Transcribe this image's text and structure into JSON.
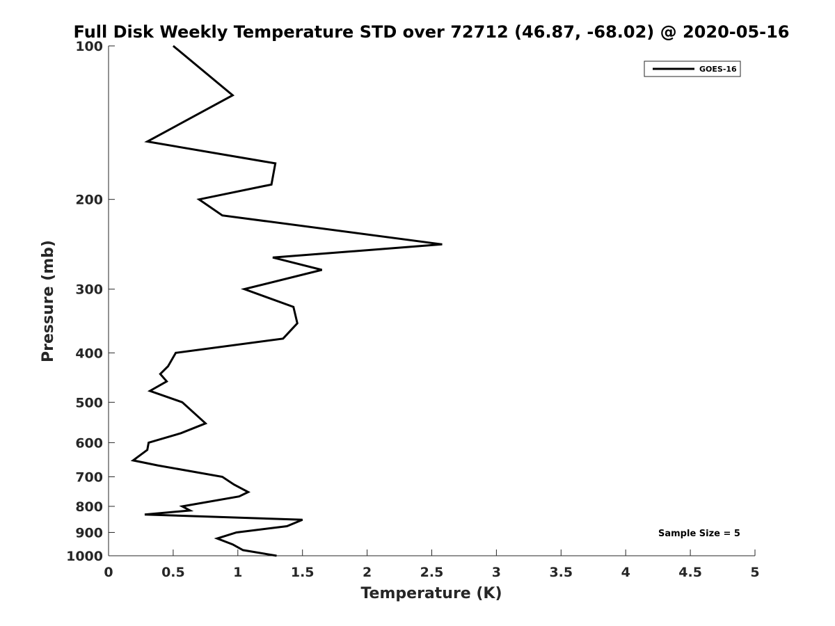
{
  "chart_data": {
    "type": "line",
    "title": "Full Disk Weekly Temperature STD over 72712 (46.87, -68.02) @ 2020-05-16",
    "xlabel": "Temperature (K)",
    "ylabel": "Pressure (mb)",
    "xlim": [
      0,
      5
    ],
    "ylim": [
      100,
      1000
    ],
    "y_scale": "log",
    "y_reversed": true,
    "x_ticks": [
      "0",
      "0.5",
      "1",
      "1.5",
      "2",
      "2.5",
      "3",
      "3.5",
      "4",
      "4.5",
      "5"
    ],
    "y_ticks": [
      "100",
      "200",
      "300",
      "400",
      "500",
      "600",
      "700",
      "800",
      "900",
      "1000"
    ],
    "grid": false,
    "legend_position": "top-right",
    "annotation": "Sample Size = 5",
    "series": [
      {
        "name": "GOES-16",
        "color": "#000000",
        "points": [
          {
            "x": 0.5,
            "y": 100
          },
          {
            "x": 0.96,
            "y": 125
          },
          {
            "x": 0.3,
            "y": 154
          },
          {
            "x": 1.29,
            "y": 170
          },
          {
            "x": 1.26,
            "y": 187
          },
          {
            "x": 0.7,
            "y": 200
          },
          {
            "x": 0.88,
            "y": 215
          },
          {
            "x": 2.58,
            "y": 245
          },
          {
            "x": 1.27,
            "y": 260
          },
          {
            "x": 1.65,
            "y": 275
          },
          {
            "x": 1.05,
            "y": 300
          },
          {
            "x": 1.43,
            "y": 325
          },
          {
            "x": 1.46,
            "y": 350
          },
          {
            "x": 1.35,
            "y": 375
          },
          {
            "x": 0.52,
            "y": 400
          },
          {
            "x": 0.46,
            "y": 425
          },
          {
            "x": 0.4,
            "y": 440
          },
          {
            "x": 0.45,
            "y": 455
          },
          {
            "x": 0.32,
            "y": 475
          },
          {
            "x": 0.57,
            "y": 500
          },
          {
            "x": 0.75,
            "y": 550
          },
          {
            "x": 0.56,
            "y": 575
          },
          {
            "x": 0.31,
            "y": 600
          },
          {
            "x": 0.3,
            "y": 620
          },
          {
            "x": 0.19,
            "y": 650
          },
          {
            "x": 0.38,
            "y": 665
          },
          {
            "x": 0.88,
            "y": 700
          },
          {
            "x": 0.97,
            "y": 725
          },
          {
            "x": 1.08,
            "y": 750
          },
          {
            "x": 1.01,
            "y": 765
          },
          {
            "x": 0.57,
            "y": 800
          },
          {
            "x": 0.63,
            "y": 815
          },
          {
            "x": 0.28,
            "y": 830
          },
          {
            "x": 1.5,
            "y": 850
          },
          {
            "x": 1.38,
            "y": 875
          },
          {
            "x": 0.99,
            "y": 900
          },
          {
            "x": 0.84,
            "y": 925
          },
          {
            "x": 0.96,
            "y": 950
          },
          {
            "x": 1.04,
            "y": 975
          },
          {
            "x": 1.3,
            "y": 1000
          }
        ]
      }
    ]
  }
}
